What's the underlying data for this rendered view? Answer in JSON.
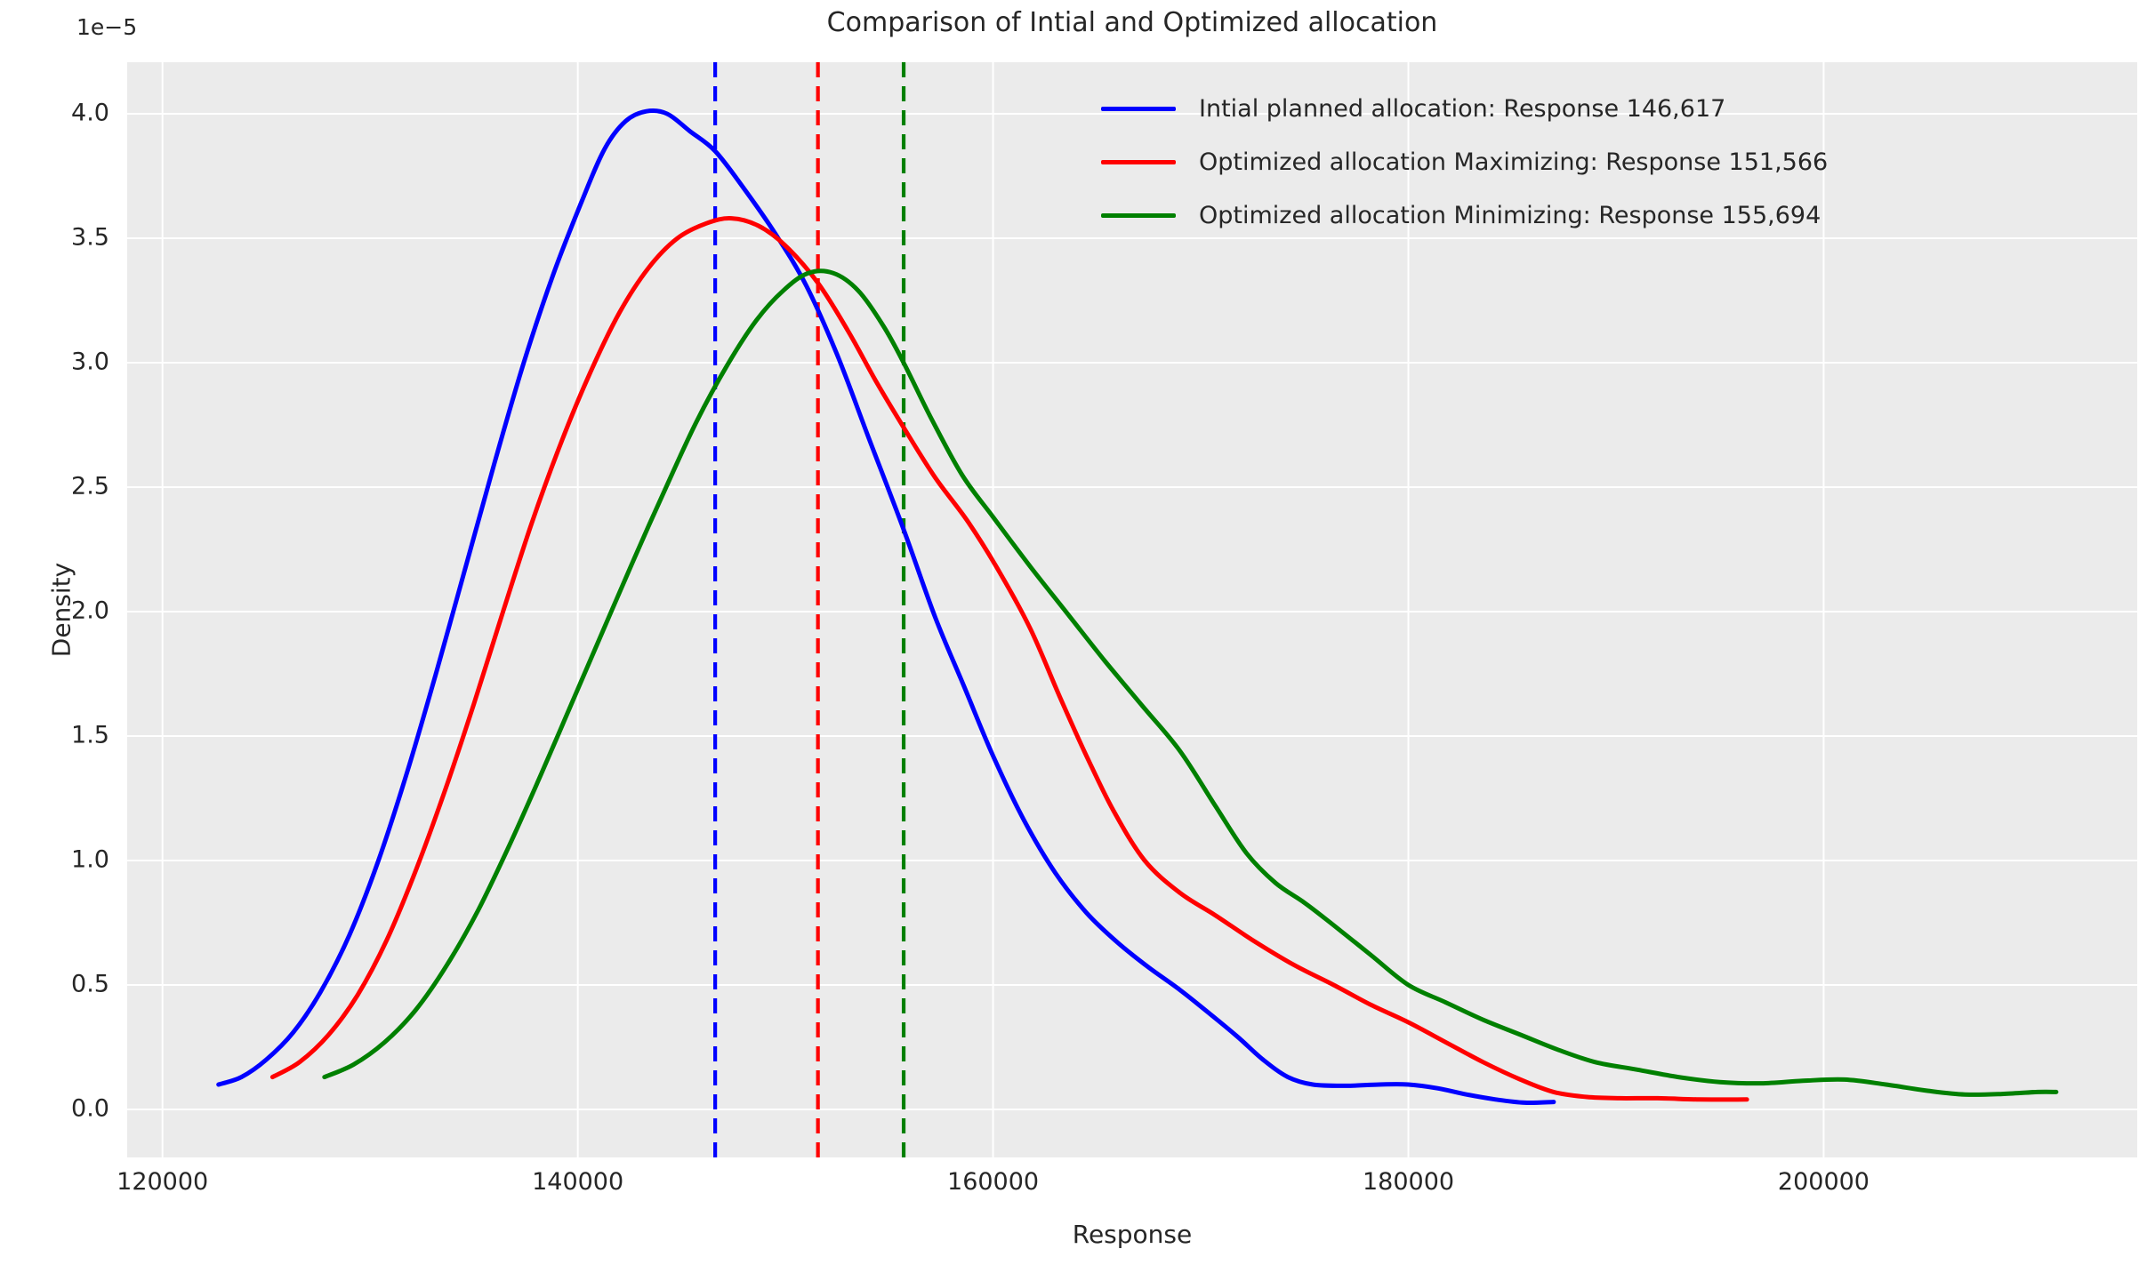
{
  "title": "Comparison of Intial and Optimized allocation",
  "axes": {
    "x": {
      "label": "Response",
      "ticks": [
        "120000",
        "140000",
        "160000",
        "180000",
        "200000"
      ],
      "tick_values": [
        120000,
        140000,
        160000,
        180000,
        200000
      ]
    },
    "y": {
      "label": "Density",
      "offset_text": "1e−5",
      "ticks": [
        "0.0",
        "0.5",
        "1.0",
        "1.5",
        "2.0",
        "2.5",
        "3.0",
        "3.5",
        "4.0"
      ],
      "tick_values": [
        0,
        0.5,
        1.0,
        1.5,
        2.0,
        2.5,
        3.0,
        3.5,
        4.0
      ]
    }
  },
  "legend": {
    "items": [
      {
        "label": "Intial planned allocation: Response 146,617",
        "color": "#0000ff"
      },
      {
        "label": "Optimized allocation Maximizing: Response 151,566",
        "color": "#ff0000"
      },
      {
        "label": "Optimized allocation Minimizing: Response 155,694",
        "color": "#008000"
      }
    ]
  },
  "colors": {
    "figure_background": "#ffffff",
    "panel_background": "#ebebeb",
    "grid": "#ffffff",
    "text": "#262626",
    "blue": "#0000ff",
    "red": "#ff0000",
    "green": "#008000"
  },
  "chart_data": {
    "type": "line",
    "title": "Comparison of Intial and Optimized allocation",
    "xlabel": "Response",
    "ylabel": "Density",
    "y_multiplier": "1e-5",
    "xlim": [
      118300,
      215100
    ],
    "ylim_1e5": [
      -0.193,
      4.207
    ],
    "grid": true,
    "legend_position": "upper right",
    "series": [
      {
        "name": "Intial planned allocation: Response 146,617",
        "color": "#0000ff",
        "style": "solid",
        "points": [
          [
            122700,
            0.1
          ],
          [
            123800,
            0.13
          ],
          [
            125000,
            0.2
          ],
          [
            126300,
            0.31
          ],
          [
            127600,
            0.47
          ],
          [
            129000,
            0.7
          ],
          [
            130400,
            1.0
          ],
          [
            131800,
            1.36
          ],
          [
            133200,
            1.76
          ],
          [
            134600,
            2.18
          ],
          [
            136000,
            2.6
          ],
          [
            137400,
            3.0
          ],
          [
            138800,
            3.35
          ],
          [
            140200,
            3.65
          ],
          [
            141300,
            3.86
          ],
          [
            142300,
            3.97
          ],
          [
            143300,
            4.01
          ],
          [
            144300,
            4.0
          ],
          [
            145400,
            3.93
          ],
          [
            146617,
            3.85
          ],
          [
            148000,
            3.7
          ],
          [
            149500,
            3.52
          ],
          [
            151000,
            3.31
          ],
          [
            152500,
            3.03
          ],
          [
            154000,
            2.7
          ],
          [
            155694,
            2.33
          ],
          [
            157200,
            1.98
          ],
          [
            158600,
            1.7
          ],
          [
            160000,
            1.42
          ],
          [
            161500,
            1.16
          ],
          [
            163000,
            0.95
          ],
          [
            164500,
            0.79
          ],
          [
            166000,
            0.67
          ],
          [
            167500,
            0.57
          ],
          [
            169000,
            0.48
          ],
          [
            170500,
            0.38
          ],
          [
            171800,
            0.29
          ],
          [
            173000,
            0.2
          ],
          [
            174200,
            0.13
          ],
          [
            175400,
            0.1
          ],
          [
            177000,
            0.095
          ],
          [
            178600,
            0.1
          ],
          [
            180000,
            0.1
          ],
          [
            181400,
            0.085
          ],
          [
            182800,
            0.06
          ],
          [
            184200,
            0.04
          ],
          [
            185600,
            0.027
          ],
          [
            187000,
            0.03
          ]
        ]
      },
      {
        "name": "Optimized allocation Maximizing: Response 151,566",
        "color": "#ff0000",
        "style": "solid",
        "points": [
          [
            125300,
            0.13
          ],
          [
            126600,
            0.19
          ],
          [
            128000,
            0.3
          ],
          [
            129400,
            0.46
          ],
          [
            130800,
            0.68
          ],
          [
            132200,
            0.96
          ],
          [
            133600,
            1.28
          ],
          [
            135000,
            1.63
          ],
          [
            136400,
            2.0
          ],
          [
            137800,
            2.36
          ],
          [
            139200,
            2.68
          ],
          [
            140600,
            2.96
          ],
          [
            142000,
            3.2
          ],
          [
            143400,
            3.38
          ],
          [
            144800,
            3.5
          ],
          [
            146200,
            3.56
          ],
          [
            147400,
            3.58
          ],
          [
            148700,
            3.55
          ],
          [
            150000,
            3.47
          ],
          [
            151566,
            3.32
          ],
          [
            153000,
            3.13
          ],
          [
            154400,
            2.92
          ],
          [
            155694,
            2.74
          ],
          [
            157200,
            2.54
          ],
          [
            158800,
            2.36
          ],
          [
            160300,
            2.16
          ],
          [
            161800,
            1.93
          ],
          [
            163200,
            1.66
          ],
          [
            164500,
            1.42
          ],
          [
            165800,
            1.2
          ],
          [
            167300,
            1.0
          ],
          [
            169000,
            0.87
          ],
          [
            170700,
            0.78
          ],
          [
            172500,
            0.68
          ],
          [
            174500,
            0.58
          ],
          [
            176400,
            0.5
          ],
          [
            178200,
            0.42
          ],
          [
            180000,
            0.35
          ],
          [
            181800,
            0.27
          ],
          [
            183600,
            0.19
          ],
          [
            185400,
            0.12
          ],
          [
            187000,
            0.07
          ],
          [
            188600,
            0.05
          ],
          [
            190200,
            0.045
          ],
          [
            192000,
            0.045
          ],
          [
            194000,
            0.04
          ],
          [
            196300,
            0.04
          ]
        ]
      },
      {
        "name": "Optimized allocation Minimizing: Response 155,694",
        "color": "#008000",
        "style": "solid",
        "points": [
          [
            127800,
            0.13
          ],
          [
            129200,
            0.18
          ],
          [
            130700,
            0.27
          ],
          [
            132200,
            0.4
          ],
          [
            133700,
            0.58
          ],
          [
            135200,
            0.8
          ],
          [
            136700,
            1.06
          ],
          [
            138200,
            1.34
          ],
          [
            139700,
            1.63
          ],
          [
            141200,
            1.92
          ],
          [
            142700,
            2.21
          ],
          [
            144200,
            2.49
          ],
          [
            145700,
            2.76
          ],
          [
            147200,
            2.99
          ],
          [
            148600,
            3.17
          ],
          [
            149900,
            3.29
          ],
          [
            151100,
            3.36
          ],
          [
            152300,
            3.36
          ],
          [
            153500,
            3.29
          ],
          [
            154700,
            3.15
          ],
          [
            155694,
            3.0
          ],
          [
            157000,
            2.78
          ],
          [
            158500,
            2.55
          ],
          [
            160000,
            2.38
          ],
          [
            161800,
            2.18
          ],
          [
            163600,
            1.99
          ],
          [
            165400,
            1.8
          ],
          [
            167200,
            1.62
          ],
          [
            169000,
            1.44
          ],
          [
            170700,
            1.22
          ],
          [
            172200,
            1.03
          ],
          [
            173600,
            0.91
          ],
          [
            175000,
            0.83
          ],
          [
            176400,
            0.74
          ],
          [
            178200,
            0.62
          ],
          [
            180000,
            0.5
          ],
          [
            181800,
            0.43
          ],
          [
            183600,
            0.36
          ],
          [
            185400,
            0.3
          ],
          [
            187200,
            0.24
          ],
          [
            189000,
            0.19
          ],
          [
            191000,
            0.16
          ],
          [
            193000,
            0.13
          ],
          [
            195000,
            0.11
          ],
          [
            197000,
            0.105
          ],
          [
            199000,
            0.115
          ],
          [
            201000,
            0.12
          ],
          [
            203000,
            0.1
          ],
          [
            205000,
            0.075
          ],
          [
            206800,
            0.06
          ],
          [
            208600,
            0.062
          ],
          [
            210300,
            0.07
          ],
          [
            211200,
            0.07
          ]
        ]
      }
    ],
    "vlines": [
      {
        "value": 146617,
        "color": "#0000ff",
        "style": "dashed"
      },
      {
        "value": 151566,
        "color": "#ff0000",
        "style": "dashed"
      },
      {
        "value": 155694,
        "color": "#008000",
        "style": "dashed"
      }
    ]
  }
}
